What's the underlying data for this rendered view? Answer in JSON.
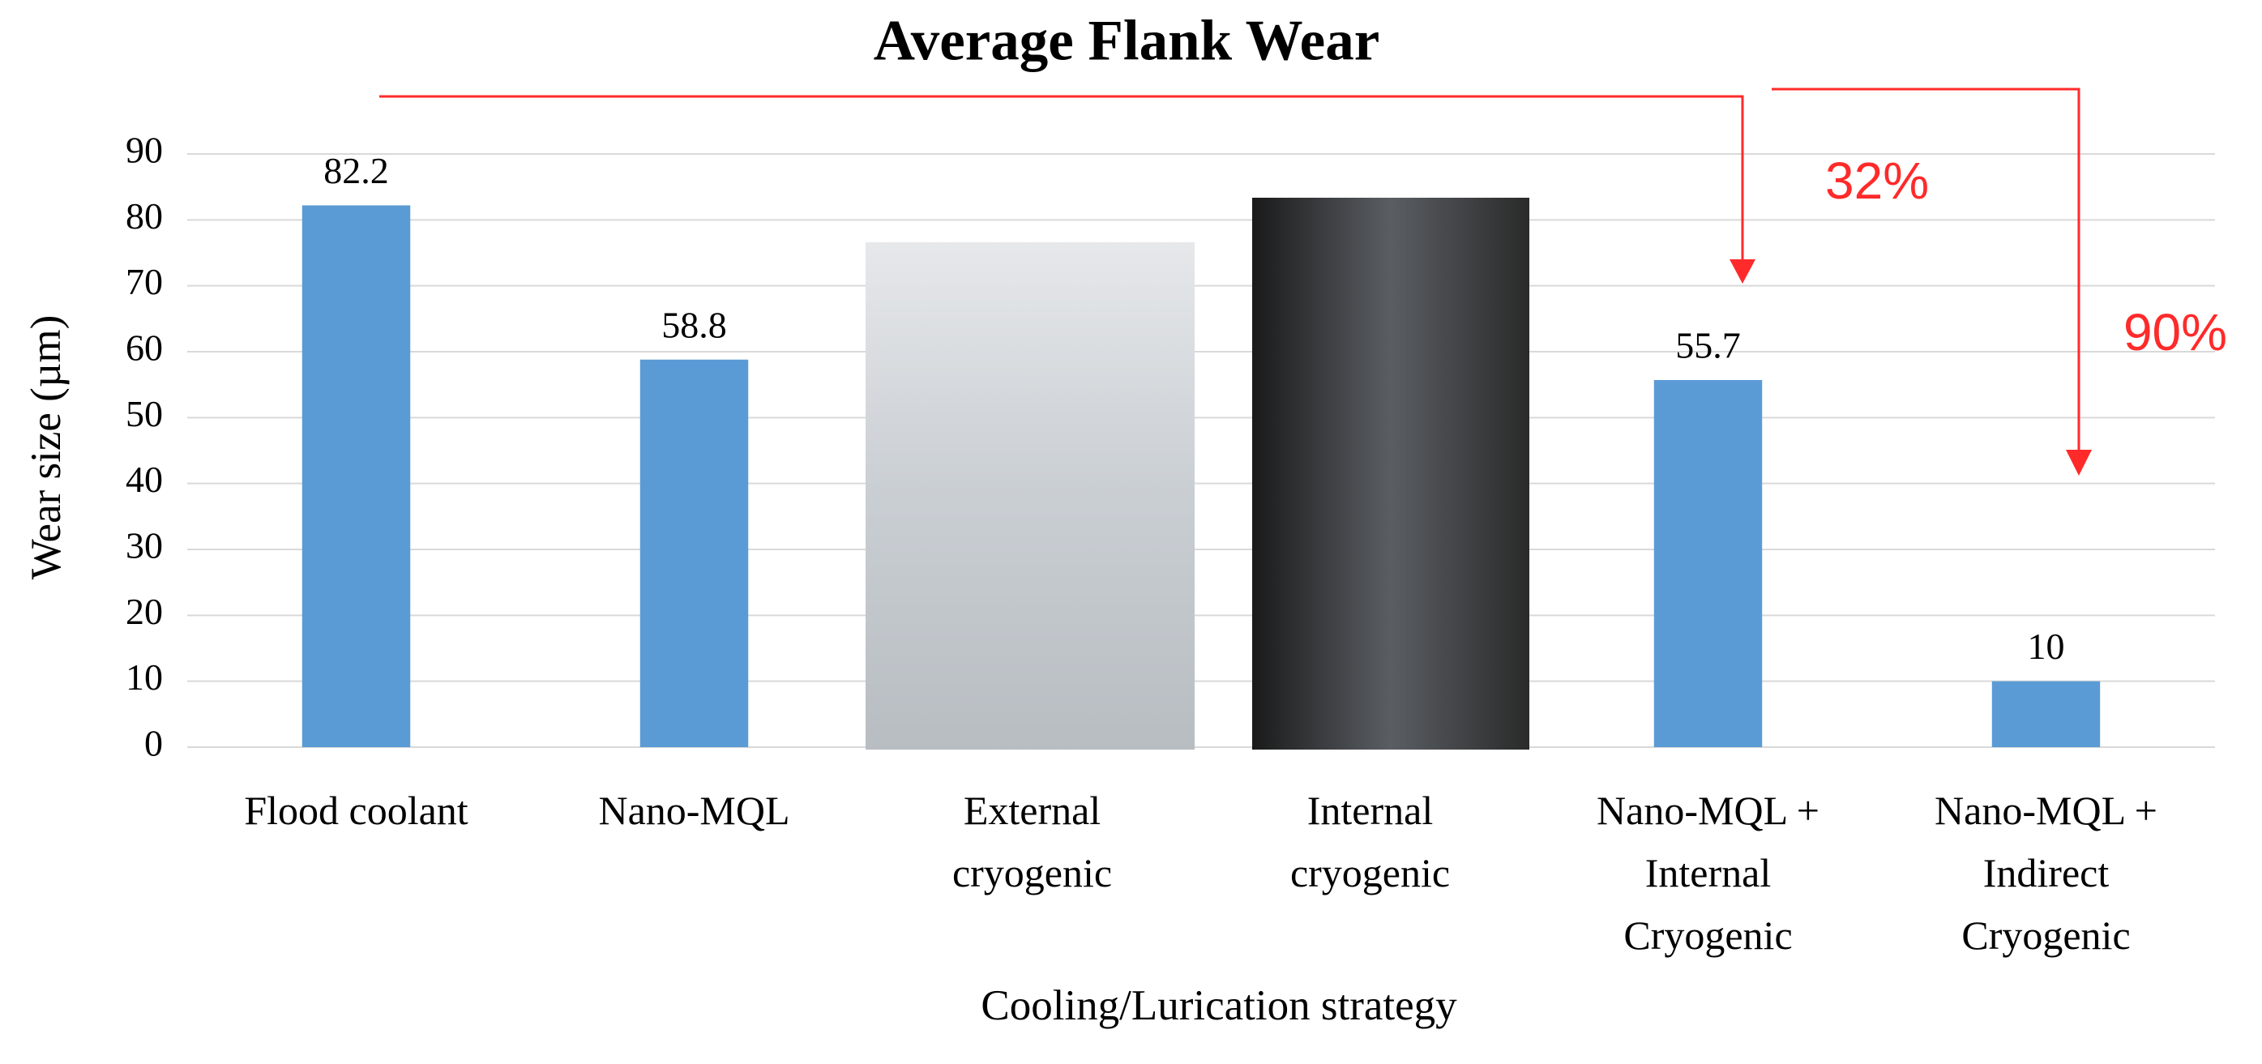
{
  "chart_data": {
    "type": "bar",
    "title": "Average Flank Wear",
    "categories": [
      "Flood coolant",
      "Nano-MQL",
      "External\ncryogenic",
      "Internal\ncryogenic",
      "Nano-MQL +\nInternal\nCryogenic",
      "Nano-MQL +\nIndirect\nCryogenic"
    ],
    "values": [
      82.2,
      58.8,
      null,
      null,
      55.7,
      10
    ],
    "color": "#5b9bd5",
    "ylim": [
      0,
      90
    ],
    "yticks": [
      0,
      10,
      20,
      30,
      40,
      50,
      60,
      70,
      80,
      90
    ],
    "grid": true,
    "y_label": "Wear size (µm)",
    "x_label": "Cooling/Lurication strategy",
    "annotations": [
      "32%",
      "90%"
    ]
  }
}
